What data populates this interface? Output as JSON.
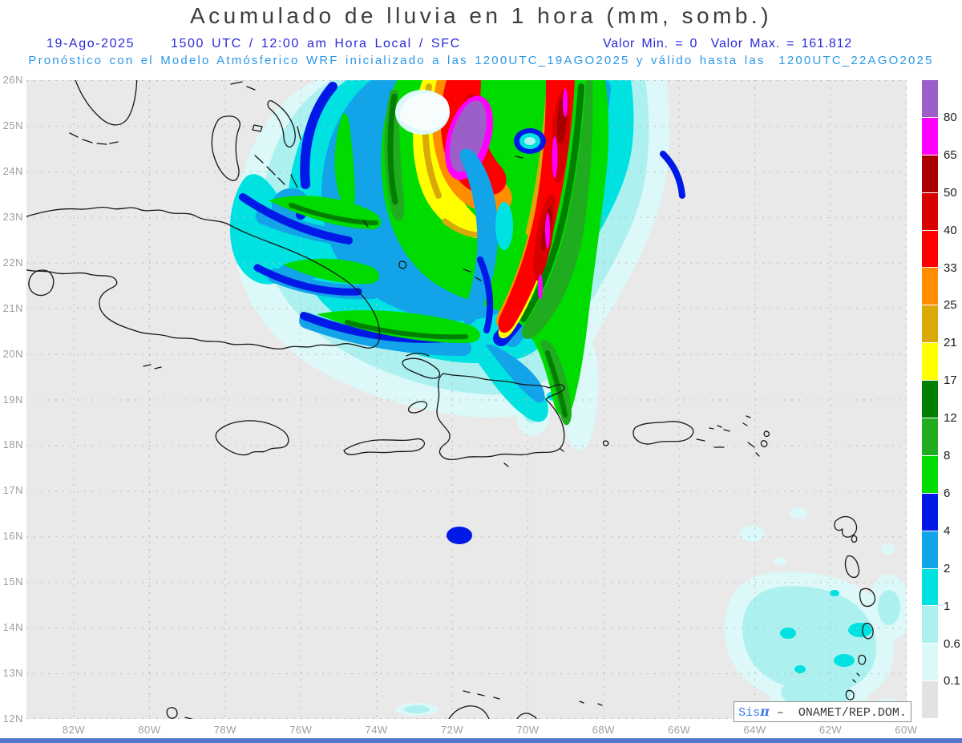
{
  "title": "Acumulado de lluvia en 1 hora (mm, somb.)",
  "header": {
    "date": "19-Ago-2025",
    "time_line": "1500 UTC / 12:00 am Hora Local / SFC",
    "minmax": "Valor Min. = 0  Valor Max. = 161.812",
    "model_line": "Pronóstico con el Modelo Atmósferico WRF inicializado a las 1200UTC_19AGO2025 y válido hasta las  1200UTC_22AGO2025"
  },
  "map": {
    "lat_labels": [
      "26N",
      "25N",
      "24N",
      "23N",
      "22N",
      "21N",
      "20N",
      "19N",
      "18N",
      "17N",
      "16N",
      "15N",
      "14N",
      "13N",
      "12N"
    ],
    "lon_labels": [
      "82W",
      "80W",
      "78W",
      "76W",
      "74W",
      "72W",
      "70W",
      "68W",
      "66W",
      "64W",
      "62W",
      "60W"
    ]
  },
  "legend": {
    "labels": [
      "80",
      "65",
      "50",
      "40",
      "33",
      "25",
      "21",
      "17",
      "12",
      "8",
      "6",
      "4",
      "2",
      "1",
      "0.6",
      "0.1"
    ],
    "thresholds_mm": [
      80,
      65,
      50,
      40,
      33,
      25,
      21,
      17,
      12,
      8,
      6,
      4,
      2,
      1,
      0.6,
      0.1
    ],
    "colors_top_to_bottom": [
      "#9c5fc9",
      "#ff00ff",
      "#a80000",
      "#d80000",
      "#ff0000",
      "#ff8d00",
      "#d9a908",
      "#ffff00",
      "#007f00",
      "#1fad1f",
      "#00dc00",
      "#0019e6",
      "#12a3e8",
      "#00e2e2",
      "#adf0f0",
      "#dcf8f8",
      "#e2e2e2"
    ]
  },
  "badge": {
    "sis": "Sis",
    "pi": "π",
    "rest": " –  ONAMET/REP.DOM."
  },
  "colors": {
    "header_blue": "#2a2ad8",
    "model_blue": "#2b97e6",
    "axis_gray": "#9e9e9e",
    "map_bg": "#e9e9e9",
    "grid": "#bcbcbc",
    "coast": "#161616",
    "eye": "#f7fdfd",
    "badge_blue": "#3a7ce8",
    "bottom_bar": "#5577cc"
  }
}
